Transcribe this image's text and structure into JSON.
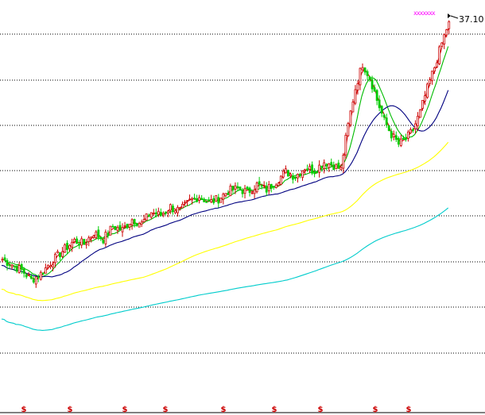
{
  "chart_data": {
    "type": "candlestick",
    "title": "",
    "last_price_label": "37.10",
    "top_marker": "xxxxxxx",
    "bottom_marker": "$",
    "bottom_marker_count": 10,
    "grid": "horizontal dotted",
    "colors": {
      "up": "#cc0000",
      "down": "#00cc00",
      "ma_short": "#cc0000",
      "ma_mid": "#00bb00",
      "ma_long": "#000080",
      "ma_longer": "#ffff00",
      "ma_longest": "#00cccc",
      "grid": "#000000",
      "marker": "#ff00ff"
    },
    "price_path": [
      [
        0,
        11.2
      ],
      [
        4,
        10.9
      ],
      [
        8,
        10.6
      ],
      [
        12,
        10.1
      ],
      [
        16,
        10.4
      ],
      [
        20,
        11.0
      ],
      [
        26,
        11.8
      ],
      [
        30,
        12.3
      ],
      [
        34,
        12.1
      ],
      [
        38,
        12.8
      ],
      [
        42,
        12.4
      ],
      [
        46,
        13.2
      ],
      [
        50,
        13.0
      ],
      [
        54,
        13.7
      ],
      [
        58,
        13.4
      ],
      [
        62,
        14.2
      ],
      [
        66,
        14.0
      ],
      [
        70,
        14.6
      ],
      [
        74,
        14.3
      ],
      [
        78,
        15.0
      ],
      [
        82,
        15.4
      ],
      [
        86,
        14.9
      ],
      [
        90,
        15.2
      ],
      [
        94,
        15.8
      ],
      [
        98,
        16.0
      ],
      [
        102,
        15.7
      ],
      [
        106,
        16.3
      ],
      [
        110,
        15.9
      ],
      [
        114,
        16.6
      ],
      [
        118,
        17.4
      ],
      [
        122,
        17.0
      ],
      [
        126,
        17.8
      ],
      [
        130,
        17.5
      ],
      [
        134,
        18.3
      ],
      [
        138,
        18.0
      ],
      [
        141,
        17.6
      ],
      [
        144,
        22.0
      ],
      [
        147,
        26.5
      ],
      [
        150,
        30.0
      ],
      [
        153,
        28.0
      ],
      [
        156,
        25.0
      ],
      [
        159,
        22.5
      ],
      [
        162,
        21.0
      ],
      [
        165,
        20.0
      ],
      [
        168,
        20.5
      ],
      [
        171,
        21.5
      ],
      [
        174,
        23.5
      ],
      [
        177,
        26.5
      ],
      [
        180,
        29.5
      ],
      [
        182,
        32.0
      ],
      [
        184,
        34.5
      ],
      [
        186,
        37.1
      ]
    ]
  }
}
